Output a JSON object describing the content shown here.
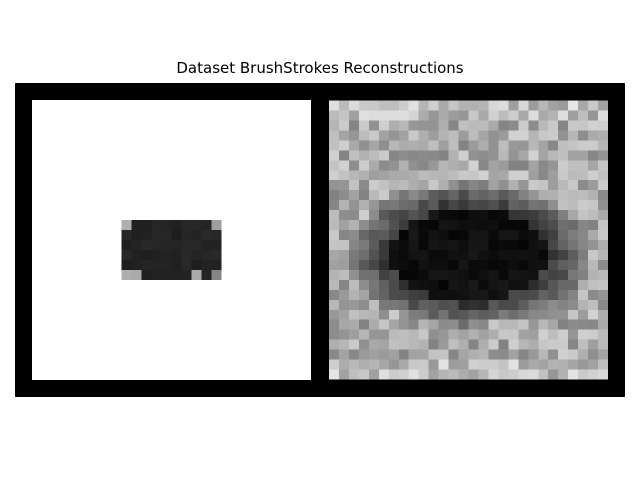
{
  "figure": {
    "title": "Dataset BrushStrokes Reconstructions",
    "background": "#ffffff",
    "frame_color": "#000000"
  },
  "panels": [
    {
      "name": "original-image",
      "grid": 28
    },
    {
      "name": "reconstruction-image",
      "grid": 28
    }
  ]
}
